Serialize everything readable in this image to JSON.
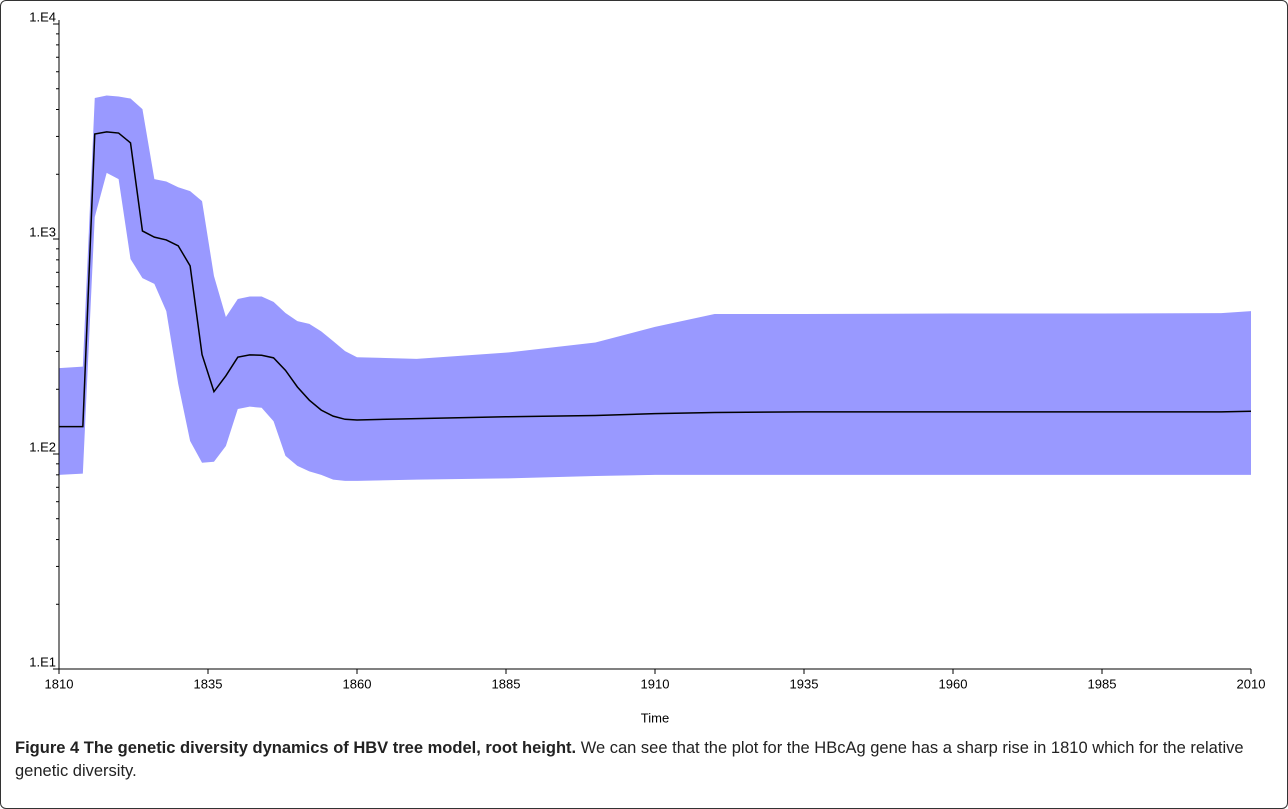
{
  "chart_data": {
    "type": "band-line",
    "xlabel": "Time",
    "x": [
      1810,
      1814,
      1816,
      1818,
      1820,
      1822,
      1824,
      1826,
      1828,
      1830,
      1832,
      1834,
      1836,
      1838,
      1840,
      1842,
      1844,
      1846,
      1848,
      1850,
      1852,
      1854,
      1856,
      1858,
      1860,
      1870,
      1885,
      1900,
      1910,
      1920,
      1935,
      1960,
      1985,
      2005,
      2010
    ],
    "band": {
      "color": "#9999ff",
      "upper": [
        251,
        255,
        4530,
        4650,
        4600,
        4500,
        4020,
        1900,
        1850,
        1740,
        1670,
        1500,
        673,
        434,
        526,
        540,
        540,
        510,
        453,
        415,
        403,
        372,
        335,
        301,
        282,
        277,
        296,
        330,
        390,
        448,
        448,
        450,
        450,
        452,
        462
      ],
      "lower": [
        80,
        81,
        1266,
        2030,
        1900,
        807,
        658,
        618,
        462,
        212,
        115,
        91,
        92,
        109,
        162,
        166,
        164,
        142,
        98,
        88,
        83,
        80,
        76,
        75,
        75,
        76,
        77,
        79,
        80,
        80,
        80,
        80,
        80,
        80,
        80
      ]
    },
    "line": {
      "color": "#000000",
      "values": [
        134,
        134,
        3080,
        3150,
        3110,
        2800,
        1090,
        1020,
        990,
        930,
        750,
        290,
        195,
        231,
        282,
        289,
        288,
        280,
        245,
        205,
        178,
        160,
        150,
        145,
        144,
        146,
        149,
        151,
        154,
        156,
        157,
        157,
        157,
        157,
        158
      ]
    },
    "xlim": [
      1810,
      2010
    ],
    "xticks": [
      1810,
      1835,
      1860,
      1885,
      1910,
      1935,
      1960,
      1985,
      2010
    ],
    "ylim": [
      10,
      10000
    ],
    "ylog": true,
    "yticks": [
      {
        "value": 10,
        "label": "1.E1"
      },
      {
        "value": 100,
        "label": "1.E2"
      },
      {
        "value": 1000,
        "label": "1.E3"
      },
      {
        "value": 10000,
        "label": "1.E4"
      }
    ],
    "minor_yticks": [
      20,
      30,
      40,
      50,
      60,
      70,
      80,
      90,
      200,
      300,
      400,
      500,
      600,
      700,
      800,
      900,
      2000,
      3000,
      4000,
      5000,
      6000,
      7000,
      8000,
      9000
    ]
  },
  "caption": {
    "label": "Figure 4 The genetic diversity dynamics of HBV tree model, root height.",
    "text": " We can see that the plot for the HBcAg gene has a sharp rise in 1810 which for the relative genetic diversity."
  }
}
